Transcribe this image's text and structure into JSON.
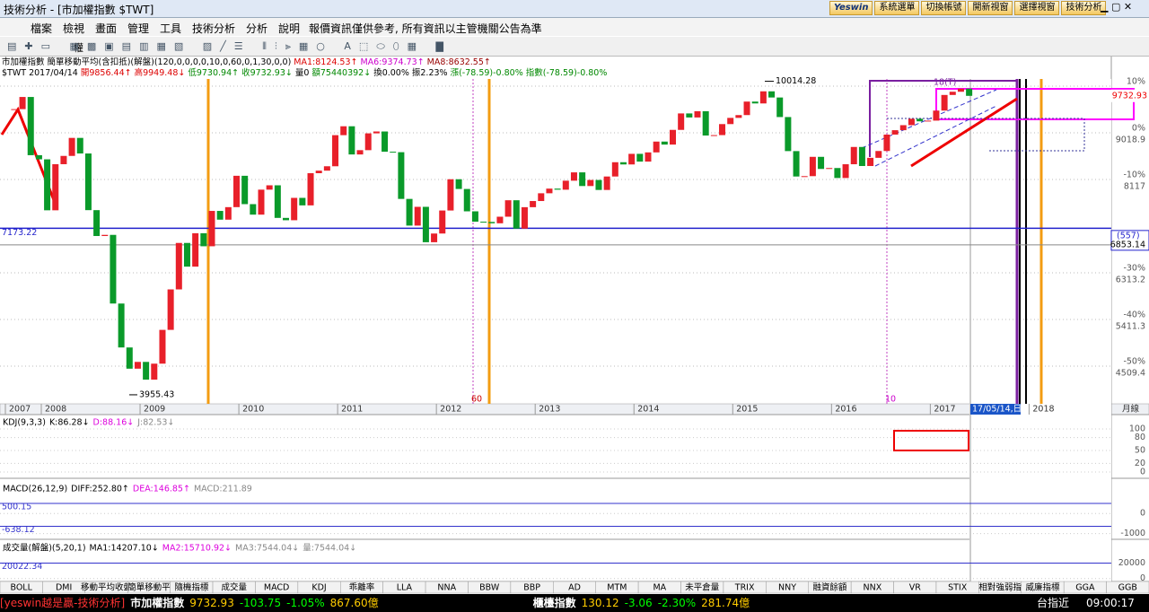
{
  "window": {
    "title": "技術分析 - [市加權指數 $TWT]",
    "buttons": [
      "Yeswin",
      "系統選單",
      "切換帳號",
      "開新視窗",
      "選擇視窗",
      "技術分析"
    ]
  },
  "menu": {
    "items": [
      "檔案",
      "檢視",
      "畫面",
      "管理",
      "工具",
      "技術分析",
      "分析",
      "說明"
    ],
    "notice": "報價資訊僅供參考, 所有資訊以主管機關公告為準"
  },
  "toolbar": {
    "label": "權"
  },
  "header": {
    "line1": [
      "市加權指數 簡單移動平均(含扣抵)(解盤)(120,0,0,0,0,10,0,60,0,1,30,0,0)",
      "MA1:8124.53↑",
      "MA6:9374.73↑",
      "MA8:8632.55↑"
    ],
    "line2": [
      "$TWT 2017/04/14",
      "開9856.44↑",
      "高9949.48↓",
      "低9730.94↑",
      "收9732.93↓",
      "量0",
      "額75440392↓",
      "換0.00%",
      "振2.23%",
      "漲(-78.59)-0.80%",
      "指數(-78.59)-0.80%"
    ]
  },
  "chart_data": {
    "type": "candlestick",
    "years": [
      "2007",
      "2008",
      "2009",
      "2010",
      "2011",
      "2012",
      "2013",
      "2014",
      "2015",
      "2016",
      "2017",
      "2018"
    ],
    "cursor_date": "17/05/14,日",
    "period": "月線",
    "close": [
      9476,
      9711,
      8586,
      8506,
      7521,
      8412,
      8572,
      8920,
      8619,
      7524,
      7024,
      7046,
      5719,
      4870,
      4460,
      4591,
      4248,
      4557,
      5210,
      5992,
      6890,
      6432,
      7078,
      6826,
      7509,
      7340,
      7582,
      8188,
      7640,
      7437,
      7920,
      8004,
      7374,
      7329,
      7761,
      7616,
      8238,
      8287,
      8372,
      8973,
      9145,
      8600,
      8683,
      9008,
      9044,
      8653,
      8644,
      7741,
      7225,
      7588,
      6904,
      7072,
      7517,
      8121,
      7933,
      7501,
      7301,
      7296,
      7270,
      7397,
      7715,
      7167,
      7581,
      7700,
      7850,
      7940,
      7919,
      8093,
      8254,
      7990,
      8107,
      7914,
      8174,
      8450,
      8407,
      8612,
      8462,
      8640,
      8849,
      8791,
      9075,
      9393,
      9315,
      9436,
      8966,
      8974,
      9187,
      9307,
      9361,
      9622,
      9586,
      9820,
      9701,
      9323,
      8665,
      8174,
      8181,
      8554,
      8320,
      8338,
      8145,
      8411,
      8745,
      8377,
      8535,
      8667,
      8984,
      9069,
      9166,
      9290,
      9240,
      9254,
      9448,
      9750,
      9812,
      9872,
      9732.93
    ],
    "up_color": "#e8202a",
    "down_color": "#0a9a2a",
    "ylim": [
      3781,
      10059
    ],
    "percent_ticks": [
      {
        "value": 9920.8,
        "label": "10%"
      },
      {
        "value": 9018.9,
        "label": "0%"
      },
      {
        "value": 8117,
        "label": "-10%"
      },
      {
        "value": 6313.2,
        "label": "-30%"
      },
      {
        "value": 5411.3,
        "label": "-40%"
      },
      {
        "value": 4509.4,
        "label": "-50%"
      }
    ],
    "price_ticks": [
      9018.9,
      8117,
      6313.2,
      5411.3,
      4509.4
    ],
    "last_price": 9732.93,
    "high": {
      "value": 10014.28,
      "label": "10014.28"
    },
    "low": {
      "value": 3955.43,
      "label": "3955.43"
    },
    "hline": {
      "value": 7173.22,
      "label": "7173.22"
    },
    "ref": {
      "value": 6853.14,
      "label": "6853.14",
      "count": "(557)"
    },
    "marks": [
      "18(T)",
      "60",
      "10"
    ]
  },
  "kdj": {
    "title": "KDJ(9,3,3)",
    "labels": [
      "K:86.28↓",
      "D:88.16↓",
      "J:82.53↓"
    ],
    "ylim": [
      0,
      100
    ],
    "yticks": [
      100,
      80,
      50,
      20,
      0
    ]
  },
  "macd": {
    "title": "MACD(26,12,9)",
    "labels": [
      "DIFF:252.80↑",
      "DEA:146.85↑",
      "MACD:211.89"
    ],
    "ylim": [
      -1150,
      900
    ],
    "yticks": [
      0,
      -1000
    ],
    "upper": {
      "value": 500.15,
      "label": "500.15"
    },
    "lower": {
      "value": -638.12,
      "label": "-638.12"
    }
  },
  "volume": {
    "title": "成交量(解盤)(5,20,1)",
    "labels": [
      "MA1:14207.10↓",
      "MA2:15710.92↓",
      "MA3:7544.04↓",
      "量:7544.04↓"
    ],
    "ylim": [
      -1500,
      31000
    ],
    "yticks": [
      20000,
      0
    ],
    "left": {
      "value": 20022.34,
      "label": "20022.34"
    }
  },
  "tabs": [
    "BOLL",
    "DMI",
    "移動平均收盤",
    "簡單移動平",
    "隨機指標",
    "成交量",
    "MACD",
    "KDJ",
    "乖離率",
    "LLA",
    "NNA",
    "BBW",
    "BBP",
    "AD",
    "MTM",
    "MA",
    "未平倉量",
    "TRIX",
    "NNY",
    "融資餘額",
    "NNX",
    "VR",
    "STIX",
    "相對強弱指",
    "威廉指標",
    "GGA",
    "GGB"
  ],
  "status": {
    "brand": "[yeswin越是贏-技術分析]",
    "q1": [
      "市加權指數",
      "9732.93",
      "-103.75",
      "-1.05%",
      "867.60億"
    ],
    "q2": [
      "櫃檯指數",
      "130.12",
      "-3.06",
      "-2.30%",
      "281.74億"
    ],
    "futures": "台指近",
    "time": "09:00:17"
  }
}
